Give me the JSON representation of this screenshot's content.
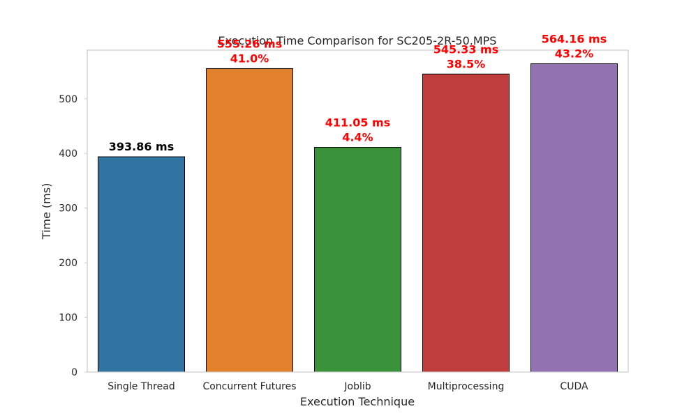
{
  "chart_data": {
    "type": "bar",
    "title": "Execution Time Comparison for SC205-2R-50.MPS",
    "xlabel": "Execution Technique",
    "ylabel": "Time (ms)",
    "ylim": [
      0,
      589
    ],
    "yticks": [
      0,
      100,
      200,
      300,
      400,
      500
    ],
    "grid": false,
    "categories": [
      "Single Thread",
      "Concurrent Futures",
      "Joblib",
      "Multiprocessing",
      "CUDA"
    ],
    "values": [
      393.86,
      555.26,
      411.05,
      545.33,
      564.16
    ],
    "colors": [
      "#3274a1",
      "#e1812c",
      "#3a923a",
      "#c03d3e",
      "#9372b2"
    ],
    "annotations": [
      {
        "lines": [
          "393.86 ms"
        ],
        "color": "#000000"
      },
      {
        "lines": [
          "555.26 ms",
          "41.0%"
        ],
        "color": "#ff0000"
      },
      {
        "lines": [
          "411.05 ms",
          "4.4%"
        ],
        "color": "#ff0000"
      },
      {
        "lines": [
          "545.33 ms",
          "38.5%"
        ],
        "color": "#ff0000"
      },
      {
        "lines": [
          "564.16 ms",
          "43.2%"
        ],
        "color": "#ff0000"
      }
    ]
  }
}
